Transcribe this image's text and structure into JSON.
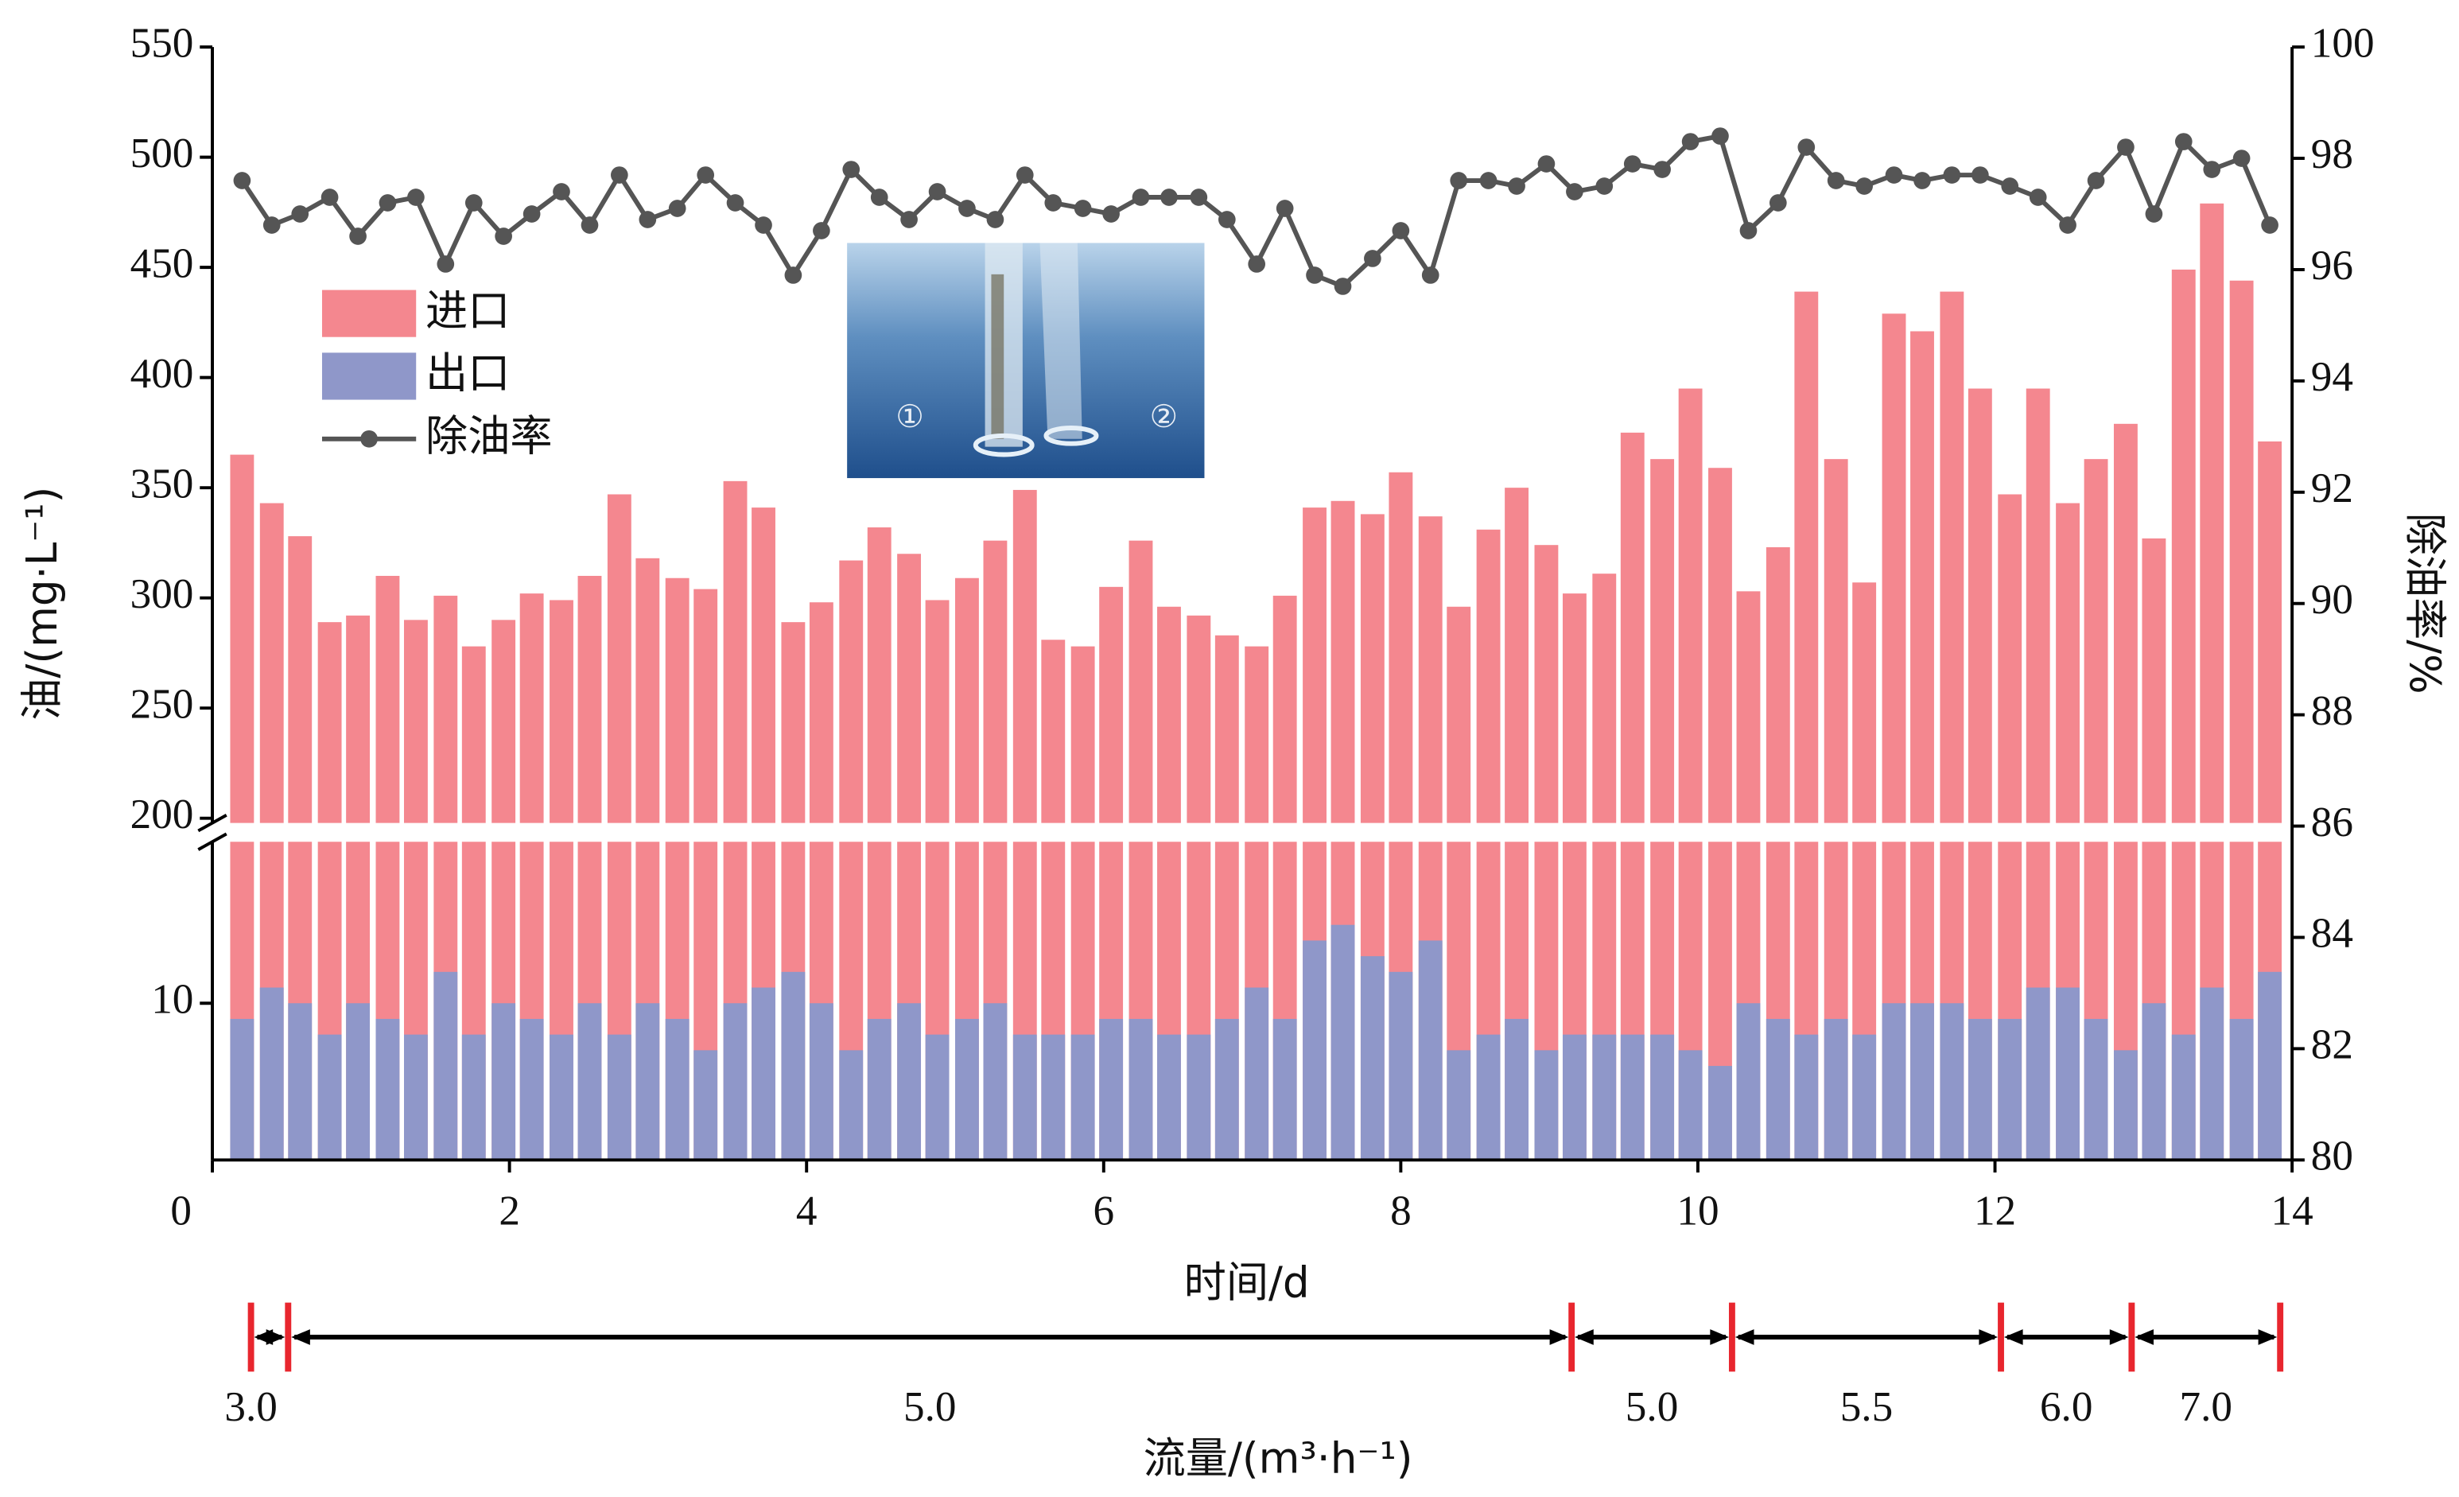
{
  "chart_data": {
    "type": "bar",
    "xlabel": "时间/d",
    "ylabel": "油/(mg·L⁻¹)",
    "y2label": "除油率/%",
    "xlim": [
      0,
      14
    ],
    "xticks": [
      0,
      2,
      4,
      6,
      8,
      10,
      12,
      14
    ],
    "ylim": [
      0,
      550
    ],
    "ybreak": [
      20,
      200
    ],
    "yticks": [
      10,
      200,
      250,
      300,
      350,
      400,
      450,
      500,
      550
    ],
    "y2lim": [
      80,
      100
    ],
    "y2ticks": [
      80,
      82,
      84,
      86,
      88,
      90,
      92,
      94,
      96,
      98,
      100
    ],
    "legend": "upper left",
    "x": [
      0.2,
      0.4,
      0.59,
      0.79,
      0.98,
      1.18,
      1.37,
      1.57,
      1.76,
      1.96,
      2.15,
      2.35,
      2.54,
      2.74,
      2.93,
      3.13,
      3.32,
      3.52,
      3.71,
      3.91,
      4.1,
      4.3,
      4.49,
      4.69,
      4.88,
      5.08,
      5.27,
      5.47,
      5.66,
      5.86,
      6.05,
      6.25,
      6.44,
      6.64,
      6.83,
      7.03,
      7.22,
      7.42,
      7.61,
      7.81,
      8.0,
      8.2,
      8.39,
      8.59,
      8.78,
      8.98,
      9.17,
      9.37,
      9.56,
      9.76,
      9.95,
      10.15,
      10.34,
      10.54,
      10.73,
      10.93,
      11.12,
      11.32,
      11.51,
      11.71,
      11.9,
      12.1,
      12.29,
      12.49,
      12.68,
      12.88,
      13.07,
      13.27,
      13.46,
      13.66,
      13.85
    ],
    "series": [
      {
        "name": "进口",
        "color": "#f4878f",
        "values": [
          365,
          343,
          328,
          289,
          292,
          310,
          290,
          301,
          278,
          290,
          302,
          299,
          310,
          347,
          318,
          309,
          304,
          353,
          341,
          289,
          298,
          317,
          332,
          320,
          299,
          309,
          326,
          349,
          281,
          278,
          305,
          326,
          296,
          292,
          283,
          278,
          301,
          341,
          344,
          338,
          357,
          337,
          296,
          331,
          350,
          324,
          302,
          311,
          375,
          363,
          395,
          359,
          303,
          323,
          439,
          363,
          307,
          429,
          421,
          439,
          395,
          347,
          395,
          343,
          363,
          379,
          327,
          449,
          479,
          444,
          371
        ]
      },
      {
        "name": "出口",
        "color": "#8f97c9",
        "values": [
          9,
          11,
          10,
          8,
          10,
          9,
          8,
          12,
          8,
          10,
          9,
          8,
          10,
          8,
          10,
          9,
          7,
          10,
          11,
          12,
          10,
          7,
          9,
          10,
          8,
          9,
          10,
          8,
          8,
          8,
          9,
          9,
          8,
          8,
          9,
          11,
          9,
          14,
          15,
          13,
          12,
          14,
          7,
          8,
          9,
          7,
          8,
          8,
          8,
          8,
          7,
          6,
          10,
          9,
          8,
          9,
          8,
          10,
          10,
          10,
          9,
          9,
          11,
          11,
          9,
          7,
          10,
          8,
          11,
          9,
          12
        ]
      },
      {
        "name": "除油率",
        "color": "#555555",
        "type": "line",
        "axis": "y2",
        "values": [
          97.6,
          96.8,
          97.0,
          97.3,
          96.6,
          97.2,
          97.3,
          96.1,
          97.2,
          96.6,
          97.0,
          97.4,
          96.8,
          97.7,
          96.9,
          97.1,
          97.7,
          97.2,
          96.8,
          95.9,
          96.7,
          97.8,
          97.3,
          96.9,
          97.4,
          97.1,
          96.9,
          97.7,
          97.2,
          97.1,
          97.0,
          97.3,
          97.3,
          97.3,
          96.9,
          96.1,
          97.1,
          95.9,
          95.7,
          96.2,
          96.7,
          95.9,
          97.6,
          97.6,
          97.5,
          97.9,
          97.4,
          97.5,
          97.9,
          97.8,
          98.3,
          98.4,
          96.7,
          97.2,
          98.2,
          97.6,
          97.5,
          97.7,
          97.6,
          97.7,
          97.7,
          97.5,
          97.3,
          96.8,
          97.6,
          98.2,
          97.0,
          98.3,
          97.8,
          98.0,
          96.8
        ]
      }
    ],
    "inset_labels": [
      "①",
      "②"
    ],
    "flow": {
      "label": "流量/(m³·h⁻¹)",
      "bounds": [
        0.26,
        0.51,
        9.15,
        10.23,
        12.04,
        12.92,
        13.92
      ],
      "values": [
        3.0,
        5.0,
        5.0,
        5.5,
        6.0,
        7.0
      ],
      "value_labels": [
        "3.0",
        "5.0",
        "5.0",
        "5.5",
        "6.0",
        "7.0"
      ]
    }
  }
}
